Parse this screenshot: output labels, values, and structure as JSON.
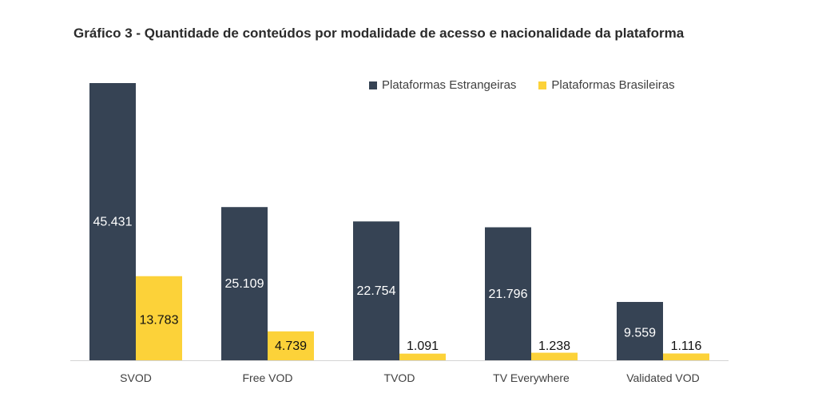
{
  "chart_data": {
    "type": "bar",
    "title": "Gráfico 3 - Quantidade de conteúdos por modalidade de acesso e nacionalidade da plataforma",
    "categories": [
      "SVOD",
      "Free VOD",
      "TVOD",
      "TV Everywhere",
      "Validated VOD"
    ],
    "series": [
      {
        "name": "Plataformas Estrangeiras",
        "color": "#364354",
        "values": [
          45431,
          25109,
          22754,
          21796,
          9559
        ],
        "labels": [
          "45.431",
          "25.109",
          "22.754",
          "21.796",
          "9.559"
        ]
      },
      {
        "name": "Plataformas Brasileiras",
        "color": "#fcd239",
        "values": [
          13783,
          4739,
          1091,
          1238,
          1116
        ],
        "labels": [
          "13.783",
          "4.739",
          "1.091",
          "1.238",
          "1.116"
        ]
      }
    ],
    "xlabel": "",
    "ylabel": "",
    "grid": false,
    "legend": "top-right"
  }
}
